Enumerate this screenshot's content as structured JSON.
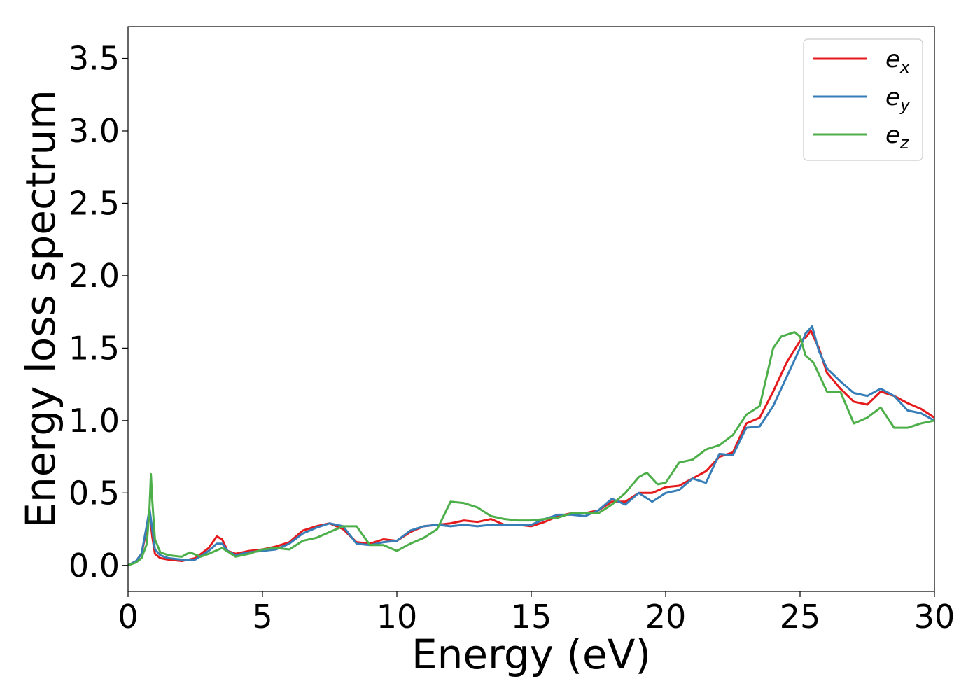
{
  "chart_data": {
    "type": "line",
    "title": "",
    "xlabel": "Energy (eV)",
    "ylabel": "Energy loss spectrum",
    "xlim": [
      0,
      30
    ],
    "ylim": [
      -0.18,
      3.72
    ],
    "xticks": [
      0,
      5,
      10,
      15,
      20,
      25,
      30
    ],
    "xtick_labels": [
      "0",
      "5",
      "10",
      "15",
      "20",
      "25",
      "30"
    ],
    "yticks": [
      0.0,
      0.5,
      1.0,
      1.5,
      2.0,
      2.5,
      3.0,
      3.5
    ],
    "ytick_labels": [
      "0.0",
      "0.5",
      "1.0",
      "1.5",
      "2.0",
      "2.5",
      "3.0",
      "3.5"
    ],
    "grid": false,
    "legend_position": "top-right",
    "series": [
      {
        "name": "e_x",
        "label_base": "e",
        "label_sub": "x",
        "color": "#e41a1c",
        "x": [
          0,
          0.3,
          0.5,
          0.7,
          0.8,
          0.9,
          1.0,
          1.2,
          1.5,
          2.0,
          2.5,
          3.0,
          3.3,
          3.5,
          3.7,
          4.0,
          4.5,
          5.0,
          5.5,
          6.0,
          6.5,
          7.0,
          7.5,
          8.0,
          8.5,
          9.0,
          9.5,
          10.0,
          10.5,
          11.0,
          11.5,
          12.0,
          12.5,
          13.0,
          13.5,
          14.0,
          14.5,
          15.0,
          15.5,
          16.0,
          16.5,
          17.0,
          17.5,
          18.0,
          18.5,
          19.0,
          19.5,
          20.0,
          20.5,
          21.0,
          21.5,
          22.0,
          22.5,
          23.0,
          23.5,
          24.0,
          24.5,
          25.0,
          25.2,
          25.4,
          25.7,
          26.0,
          26.5,
          27.0,
          27.5,
          28.0,
          28.5,
          29.0,
          29.5,
          30.0
        ],
        "y": [
          0.0,
          0.03,
          0.08,
          0.25,
          0.37,
          0.2,
          0.08,
          0.05,
          0.04,
          0.03,
          0.05,
          0.12,
          0.2,
          0.18,
          0.1,
          0.08,
          0.1,
          0.11,
          0.13,
          0.16,
          0.24,
          0.27,
          0.29,
          0.25,
          0.16,
          0.15,
          0.18,
          0.17,
          0.23,
          0.27,
          0.28,
          0.29,
          0.31,
          0.3,
          0.32,
          0.28,
          0.28,
          0.27,
          0.3,
          0.34,
          0.36,
          0.36,
          0.38,
          0.44,
          0.44,
          0.5,
          0.5,
          0.54,
          0.55,
          0.6,
          0.65,
          0.75,
          0.78,
          0.98,
          1.02,
          1.2,
          1.4,
          1.55,
          1.57,
          1.62,
          1.5,
          1.33,
          1.22,
          1.13,
          1.11,
          1.2,
          1.17,
          1.12,
          1.08,
          1.02
        ]
      },
      {
        "name": "e_y",
        "label_base": "e",
        "label_sub": "y",
        "color": "#377eb8",
        "x": [
          0,
          0.3,
          0.5,
          0.7,
          0.8,
          0.9,
          1.0,
          1.2,
          1.5,
          2.0,
          2.5,
          3.0,
          3.3,
          3.5,
          3.7,
          4.0,
          4.5,
          5.0,
          5.5,
          6.0,
          6.5,
          7.0,
          7.5,
          8.0,
          8.5,
          9.0,
          9.5,
          10.0,
          10.5,
          11.0,
          11.5,
          12.0,
          12.5,
          13.0,
          13.5,
          14.0,
          14.5,
          15.0,
          15.5,
          16.0,
          16.5,
          17.0,
          17.5,
          18.0,
          18.5,
          19.0,
          19.5,
          20.0,
          20.5,
          21.0,
          21.5,
          22.0,
          22.5,
          23.0,
          23.5,
          24.0,
          24.5,
          25.0,
          25.2,
          25.45,
          25.7,
          26.0,
          26.5,
          27.0,
          27.5,
          28.0,
          28.5,
          29.0,
          29.5,
          30.0
        ],
        "y": [
          0.0,
          0.03,
          0.08,
          0.28,
          0.39,
          0.25,
          0.11,
          0.07,
          0.05,
          0.04,
          0.04,
          0.1,
          0.15,
          0.15,
          0.1,
          0.07,
          0.09,
          0.1,
          0.11,
          0.15,
          0.22,
          0.26,
          0.29,
          0.27,
          0.15,
          0.14,
          0.16,
          0.17,
          0.24,
          0.27,
          0.28,
          0.27,
          0.28,
          0.27,
          0.28,
          0.28,
          0.28,
          0.28,
          0.32,
          0.35,
          0.35,
          0.34,
          0.38,
          0.46,
          0.42,
          0.5,
          0.44,
          0.5,
          0.52,
          0.6,
          0.57,
          0.77,
          0.76,
          0.95,
          0.96,
          1.1,
          1.3,
          1.5,
          1.6,
          1.65,
          1.48,
          1.36,
          1.27,
          1.19,
          1.17,
          1.22,
          1.17,
          1.07,
          1.05,
          1.0
        ]
      },
      {
        "name": "e_z",
        "label_base": "e",
        "label_sub": "z",
        "color": "#4daf4a",
        "x": [
          0,
          0.3,
          0.5,
          0.7,
          0.8,
          0.85,
          0.9,
          1.0,
          1.2,
          1.5,
          2.0,
          2.3,
          2.7,
          3.0,
          3.5,
          4.0,
          4.5,
          5.0,
          5.5,
          6.0,
          6.5,
          7.0,
          7.5,
          8.0,
          8.5,
          9.0,
          9.5,
          10.0,
          10.5,
          11.0,
          11.5,
          12.0,
          12.5,
          13.0,
          13.5,
          14.0,
          14.5,
          15.0,
          15.5,
          16.0,
          16.5,
          17.0,
          17.5,
          18.0,
          18.5,
          19.0,
          19.3,
          19.7,
          20.0,
          20.5,
          21.0,
          21.5,
          22.0,
          22.5,
          23.0,
          23.5,
          24.0,
          24.3,
          24.8,
          25.0,
          25.2,
          25.5,
          26.0,
          26.5,
          27.0,
          27.5,
          28.0,
          28.5,
          29.0,
          29.5,
          30.0
        ],
        "y": [
          0.0,
          0.02,
          0.05,
          0.15,
          0.4,
          0.63,
          0.45,
          0.18,
          0.09,
          0.07,
          0.06,
          0.09,
          0.06,
          0.08,
          0.12,
          0.06,
          0.08,
          0.11,
          0.12,
          0.11,
          0.17,
          0.19,
          0.23,
          0.27,
          0.27,
          0.14,
          0.14,
          0.1,
          0.15,
          0.19,
          0.25,
          0.44,
          0.43,
          0.4,
          0.34,
          0.32,
          0.31,
          0.31,
          0.32,
          0.33,
          0.36,
          0.36,
          0.36,
          0.42,
          0.5,
          0.61,
          0.64,
          0.56,
          0.57,
          0.71,
          0.73,
          0.8,
          0.83,
          0.9,
          1.04,
          1.1,
          1.5,
          1.58,
          1.61,
          1.58,
          1.45,
          1.4,
          1.2,
          1.2,
          0.98,
          1.02,
          1.09,
          0.95,
          0.95,
          0.98,
          1.0
        ]
      }
    ]
  }
}
